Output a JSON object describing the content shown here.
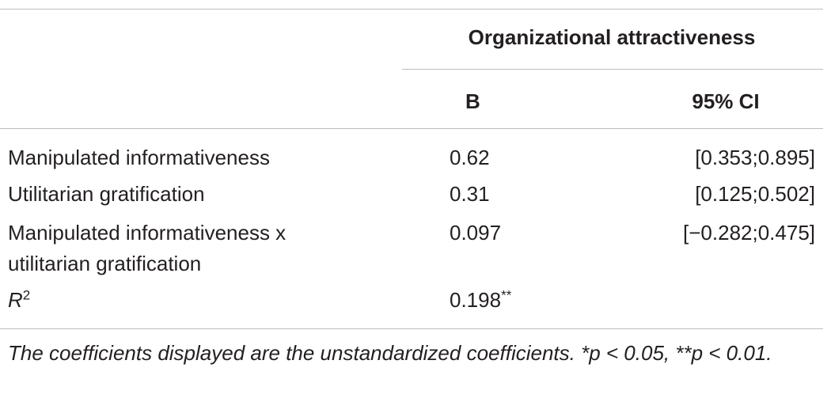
{
  "table": {
    "group_header": "Organizational attractiveness",
    "columns": [
      "B",
      "95% CI"
    ],
    "rows": [
      {
        "label": "Manipulated informativeness",
        "b": "0.62",
        "ci": "[0.353;0.895]"
      },
      {
        "label": "Utilitarian gratification",
        "b": "0.31",
        "ci": "[0.125;0.502]"
      },
      {
        "label": "Manipulated informativeness x",
        "label_line2": "utilitarian gratification",
        "b": "0.097",
        "ci": "[−0.282;0.475]"
      },
      {
        "label": "R",
        "label_sup": "2",
        "b": "0.198",
        "b_sup": "**"
      }
    ],
    "footnote": "The coefficients displayed are the unstandardized coefficients. *p < 0.05, **p < 0.01."
  }
}
